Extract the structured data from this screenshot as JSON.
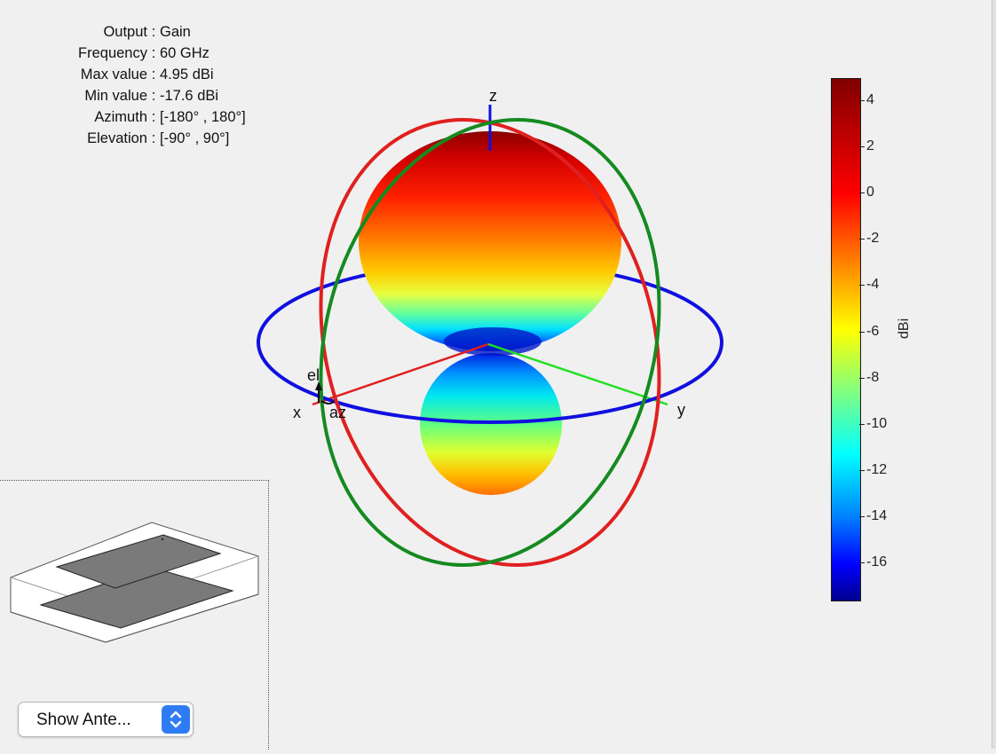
{
  "info": {
    "rows": [
      {
        "label": "Output",
        "value": "Gain"
      },
      {
        "label": "Frequency",
        "value": "60 GHz"
      },
      {
        "label": "Max value",
        "value": "4.95 dBi"
      },
      {
        "label": "Min value",
        "value": "-17.6 dBi"
      },
      {
        "label": "Azimuth",
        "value": "[-180° , 180°]"
      },
      {
        "label": "Elevation",
        "value": "[-90° , 90°]"
      }
    ],
    "separator": ":"
  },
  "plot": {
    "axis_labels": {
      "x": "x",
      "y": "y",
      "z": "z",
      "el": "el",
      "az": "az"
    },
    "colors": {
      "azimuth_ring": "#1010e0",
      "elevation_ring_xz": "#e02020",
      "elevation_ring_yz": "#158a20",
      "x_axis": "#e02020",
      "y_axis": "#20e020",
      "z_axis": "#1010e0"
    }
  },
  "colorbar": {
    "unit": "dBi",
    "ticks": [
      "4",
      "2",
      "0",
      "-2",
      "-4",
      "-6",
      "-8",
      "-10",
      "-12",
      "-14",
      "-16"
    ],
    "max": 4.95,
    "min": -17.6
  },
  "inset": {
    "name": "antenna-preview"
  },
  "dropdown": {
    "label": "Show Ante...",
    "icon": "up-down-chevron-icon"
  }
}
